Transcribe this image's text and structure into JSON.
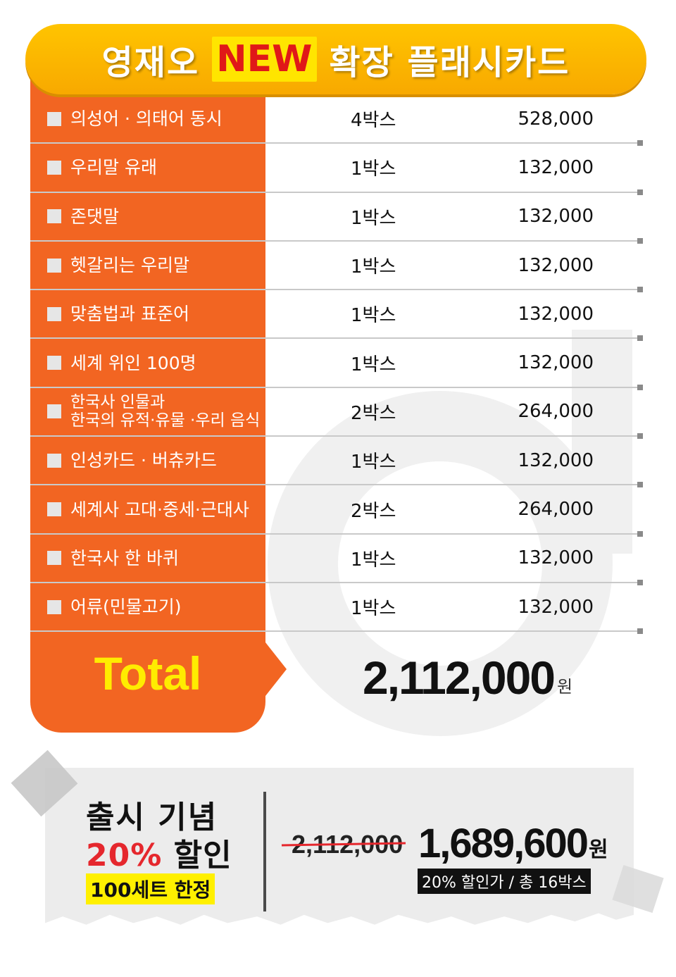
{
  "title": {
    "prefix": "영재오",
    "highlight": "NEW",
    "suffix": "확장 플래시카드"
  },
  "items": [
    {
      "name": "의성어 · 의태어 동시",
      "qty": "4박스",
      "price": "528,000"
    },
    {
      "name": "우리말 유래",
      "qty": "1박스",
      "price": "132,000"
    },
    {
      "name": "존댓말",
      "qty": "1박스",
      "price": "132,000"
    },
    {
      "name": "헷갈리는 우리말",
      "qty": "1박스",
      "price": "132,000"
    },
    {
      "name": "맞춤법과 표준어",
      "qty": "1박스",
      "price": "132,000"
    },
    {
      "name": "세계 위인 100명",
      "qty": "1박스",
      "price": "132,000"
    },
    {
      "name": "한국사 인물과\n한국의 유적·유물 ·우리 음식",
      "qty": "2박스",
      "price": "264,000"
    },
    {
      "name": "인성카드 · 버츄카드",
      "qty": "1박스",
      "price": "132,000"
    },
    {
      "name": "세계사 고대·중세·근대사",
      "qty": "2박스",
      "price": "264,000"
    },
    {
      "name": "한국사 한 바퀴",
      "qty": "1박스",
      "price": "132,000"
    },
    {
      "name": "어류(민물고기)",
      "qty": "1박스",
      "price": "132,000"
    }
  ],
  "total": {
    "label": "Total",
    "value": "2,112,000",
    "unit": "원"
  },
  "promo": {
    "line1": "출시 기념",
    "line2_pct": "20%",
    "line2_rest": "할인",
    "limit": "100세트 한정",
    "old_price": "2,112,000",
    "new_price": "1,689,600",
    "unit": "원",
    "note": "20% 할인가 / 총 16박스"
  },
  "colors": {
    "orange": "#f26522",
    "banner": "#ffc400",
    "total_label": "#ffec00",
    "discount_red": "#e5272d"
  }
}
